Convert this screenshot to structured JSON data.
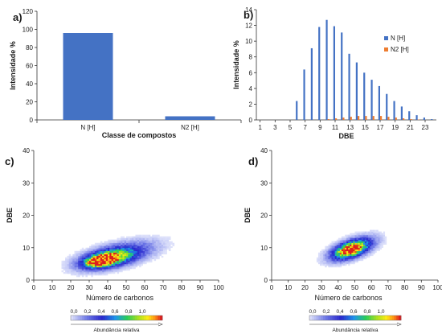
{
  "chart_data": [
    {
      "panel": "a)",
      "type": "bar",
      "categories": [
        "N [H]",
        "N2 [H]"
      ],
      "values": [
        96,
        4
      ],
      "xlabel": "Classe de compostos",
      "ylabel": "Intensidade %",
      "ylim": [
        0,
        120
      ],
      "yticks": [
        0,
        20,
        40,
        60,
        80,
        100,
        120
      ],
      "colors": [
        "#4472C4"
      ]
    },
    {
      "panel": "b)",
      "type": "bar",
      "x": [
        1,
        2,
        3,
        4,
        5,
        6,
        7,
        8,
        9,
        10,
        11,
        12,
        13,
        14,
        15,
        16,
        17,
        18,
        19,
        20,
        21,
        22,
        23,
        24
      ],
      "xticks": [
        "1",
        "3",
        "5",
        "7",
        "9",
        "11",
        "13",
        "15",
        "17",
        "19",
        "21",
        "23"
      ],
      "series": [
        {
          "name": "N [H]",
          "color": "#4472C4",
          "values": [
            0,
            0,
            0,
            0,
            0,
            2.4,
            6.4,
            9.1,
            11.8,
            12.7,
            11.9,
            11.1,
            8.4,
            7.3,
            6.0,
            5.1,
            4.3,
            3.3,
            2.4,
            1.7,
            1.1,
            0.6,
            0.3,
            0.1
          ]
        },
        {
          "name": "N2 [H]",
          "color": "#ED7D31",
          "values": [
            0,
            0,
            0,
            0,
            0,
            0,
            0,
            0,
            0,
            0.1,
            0.2,
            0.3,
            0.4,
            0.5,
            0.5,
            0.5,
            0.5,
            0.4,
            0.3,
            0.2,
            0.1,
            0.05,
            0,
            0
          ]
        }
      ],
      "xlabel": "DBE",
      "ylabel": "Intensidade %",
      "ylim": [
        0,
        14
      ],
      "yticks": [
        0,
        2,
        4,
        6,
        8,
        10,
        12,
        14
      ],
      "legend": "right"
    },
    {
      "panel": "c)",
      "type": "heatmap",
      "xlabel": "Número de carbonos",
      "ylabel": "DBE",
      "xlim": [
        0,
        100
      ],
      "ylim": [
        0,
        40
      ],
      "xticks": [
        0,
        10,
        20,
        30,
        40,
        50,
        60,
        70,
        80,
        90,
        100
      ],
      "yticks": [
        0,
        10,
        20,
        30,
        40
      ],
      "colorbar_label": "Abundância relativa",
      "colorbar_ticks": [
        "0,0",
        "0,2",
        "0,4",
        "0,6",
        "0,8",
        "1,0"
      ],
      "blobs": [
        {
          "x": 45,
          "y": 7.5,
          "sx": 15,
          "sy": 2.6,
          "w": 0.35,
          "tilt": 0.12
        },
        {
          "x": 40,
          "y": 6.5,
          "sx": 9,
          "sy": 1.7,
          "w": 0.6,
          "tilt": 0.1
        },
        {
          "x": 36,
          "y": 5.8,
          "sx": 5,
          "sy": 1.1,
          "w": 0.9,
          "tilt": 0.08
        }
      ]
    },
    {
      "panel": "d)",
      "type": "heatmap",
      "xlabel": "Número de carbonos",
      "ylabel": "DBE",
      "xlim": [
        0,
        100
      ],
      "ylim": [
        0,
        40
      ],
      "xticks": [
        0,
        10,
        20,
        30,
        40,
        50,
        60,
        70,
        80,
        90,
        100
      ],
      "yticks": [
        0,
        10,
        20,
        30,
        40
      ],
      "colorbar_label": "Abundância relativa",
      "colorbar_ticks": [
        "0,0",
        "0,2",
        "0,4",
        "0,6",
        "0,8",
        "1,0"
      ],
      "blobs": [
        {
          "x": 48,
          "y": 9.5,
          "sx": 10,
          "sy": 2.2,
          "w": 0.45,
          "tilt": 0.16
        },
        {
          "x": 47,
          "y": 9.2,
          "sx": 6,
          "sy": 1.4,
          "w": 0.8,
          "tilt": 0.14
        }
      ]
    }
  ]
}
